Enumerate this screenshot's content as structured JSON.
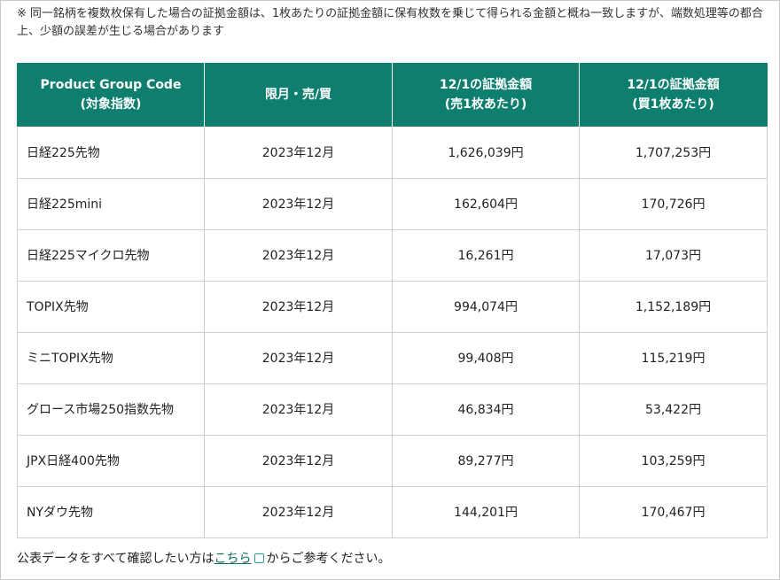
{
  "note": {
    "mark": "※",
    "text": "同一銘柄を複数枚保有した場合の証拠金額は、1枚あたりの証拠金額に保有枚数を乗じて得られる金額と概ね一致しますが、端数処理等の都合上、少額の誤差が生じる場合があります"
  },
  "table": {
    "headers": [
      {
        "line1": "Product Group Code",
        "line2": "(対象指数)"
      },
      {
        "line1": "限月・売/買",
        "line2": ""
      },
      {
        "line1": "12/1の証拠金額",
        "line2": "(売1枚あたり)"
      },
      {
        "line1": "12/1の証拠金額",
        "line2": "(買1枚あたり)"
      }
    ],
    "rows": [
      {
        "product": "日経225先物",
        "month": "2023年12月",
        "sell": "1,626,039円",
        "buy": "1,707,253円"
      },
      {
        "product": "日経225mini",
        "month": "2023年12月",
        "sell": "162,604円",
        "buy": "170,726円"
      },
      {
        "product": "日経225マイクロ先物",
        "month": "2023年12月",
        "sell": "16,261円",
        "buy": "17,073円"
      },
      {
        "product": "TOPIX先物",
        "month": "2023年12月",
        "sell": "994,074円",
        "buy": "1,152,189円"
      },
      {
        "product": "ミニTOPIX先物",
        "month": "2023年12月",
        "sell": "99,408円",
        "buy": "115,219円"
      },
      {
        "product": "グロース市場250指数先物",
        "month": "2023年12月",
        "sell": "46,834円",
        "buy": "53,422円"
      },
      {
        "product": "JPX日経400先物",
        "month": "2023年12月",
        "sell": "89,277円",
        "buy": "103,259円"
      },
      {
        "product": "NYダウ先物",
        "month": "2023年12月",
        "sell": "144,201円",
        "buy": "170,467円"
      }
    ]
  },
  "footer": {
    "before": "公表データをすべて確認したい方は",
    "link": "こちら",
    "after": "からご参考ください。",
    "link_icon": "external-link-icon"
  },
  "colors": {
    "header_bg": "#0e7f6e",
    "header_text": "#ffffff",
    "border": "#cfcfcf"
  }
}
